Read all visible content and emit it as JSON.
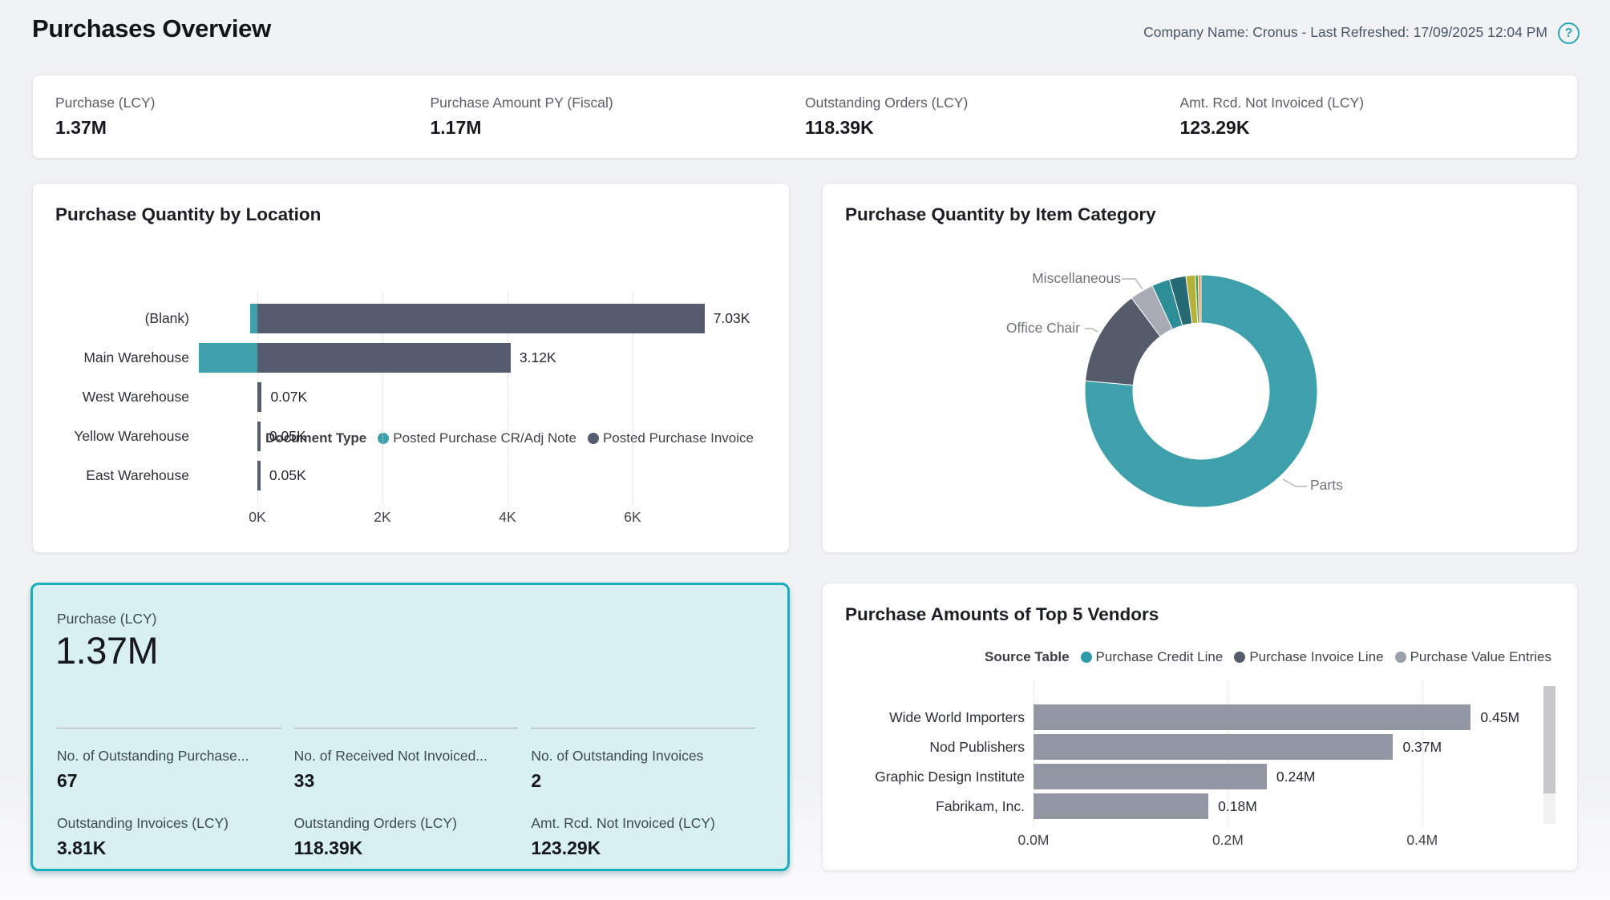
{
  "header": {
    "title": "Purchases Overview",
    "meta": "Company Name: Cronus - Last Refreshed: 17/09/2025 12:04 PM",
    "help_icon": "?"
  },
  "kpi_strip": {
    "items": [
      {
        "label": "Purchase (LCY)",
        "value": "1.37M"
      },
      {
        "label": "Purchase Amount PY (Fiscal)",
        "value": "1.17M"
      },
      {
        "label": "Outstanding Orders (LCY)",
        "value": "118.39K"
      },
      {
        "label": "Amt. Rcd. Not Invoiced (LCY)",
        "value": "123.29K"
      }
    ]
  },
  "purchase_card": {
    "label": "Purchase (LCY)",
    "value": "1.37M",
    "sub_kpis_row1": [
      {
        "label": "No. of Outstanding Purchase...",
        "value": "67"
      },
      {
        "label": "No. of Received Not Invoiced...",
        "value": "33"
      },
      {
        "label": "No. of Outstanding Invoices",
        "value": "2"
      }
    ],
    "sub_kpis_row2": [
      {
        "label": "Outstanding Invoices (LCY)",
        "value": "3.81K"
      },
      {
        "label": "Outstanding Orders (LCY)",
        "value": "118.39K"
      },
      {
        "label": "Amt. Rcd. Not Invoiced (LCY)",
        "value": "123.29K"
      }
    ]
  },
  "chart_data": [
    {
      "type": "bar",
      "title": "Purchase Quantity by Location",
      "orientation": "horizontal",
      "legend_title": "Document Type",
      "categories": [
        "(Blank)",
        "Main Warehouse",
        "West Warehouse",
        "Yellow Warehouse",
        "East Warehouse"
      ],
      "series": [
        {
          "name": "Posted Purchase CR/Adj Note",
          "color": "#3EA0AA",
          "values_k": [
            -0.12,
            -0.93,
            0,
            0,
            0
          ]
        },
        {
          "name": "Posted Purchase Invoice",
          "color": "#545C6D",
          "values_k": [
            7.15,
            4.05,
            0.07,
            0.05,
            0.05
          ]
        }
      ],
      "total_labels": [
        "7.03K",
        "3.12K",
        "0.07K",
        "0.05K",
        "0.05K"
      ],
      "x_ticks": [
        "0K",
        "2K",
        "4K",
        "6K"
      ],
      "x_tick_values": [
        0,
        2,
        4,
        6
      ],
      "xlim": [
        -1.2,
        8.2
      ],
      "grid": "dotted-vertical"
    },
    {
      "type": "donut",
      "title": "Purchase Quantity by Item Category",
      "slices": [
        {
          "label": "Parts",
          "percent": 76.4,
          "color": "#3EA0AA"
        },
        {
          "label": "Office Chair",
          "percent": 13.4,
          "color": "#545B6B"
        },
        {
          "label": "Miscellaneous",
          "percent": 3.3,
          "color": "#A8ABB4"
        },
        {
          "label": "",
          "percent": 2.5,
          "color": "#2E8E97"
        },
        {
          "label": "",
          "percent": 2.3,
          "color": "#266972"
        },
        {
          "label": "",
          "percent": 1.3,
          "color": "#B4B23A"
        },
        {
          "label": "",
          "percent": 0.4,
          "color": "#44A348"
        },
        {
          "label": "",
          "percent": 0.4,
          "color": "#E78F5E"
        }
      ],
      "legend_position": "none"
    },
    {
      "type": "bar",
      "title": "Purchase Amounts of Top 5 Vendors",
      "orientation": "horizontal",
      "legend_title": "Source Table",
      "legend": [
        {
          "name": "Purchase Credit Line",
          "color": "#2D9BA5"
        },
        {
          "name": "Purchase Invoice Line",
          "color": "#545B6B"
        },
        {
          "name": "Purchase Value Entries",
          "color": "#9BA0AB"
        }
      ],
      "categories": [
        "Wide World Importers",
        "Nod Publishers",
        "Graphic Design Institute",
        "Fabrikam, Inc."
      ],
      "values_m": [
        0.45,
        0.37,
        0.24,
        0.18
      ],
      "value_labels": [
        "0.45M",
        "0.37M",
        "0.24M",
        "0.18M"
      ],
      "bar_color": "#9196A2",
      "x_ticks": [
        "0.0M",
        "0.2M",
        "0.4M"
      ],
      "x_tick_values": [
        0,
        0.2,
        0.4
      ],
      "xlim": [
        0,
        0.56
      ],
      "grid": "dotted-vertical",
      "scrollbar": true
    }
  ]
}
